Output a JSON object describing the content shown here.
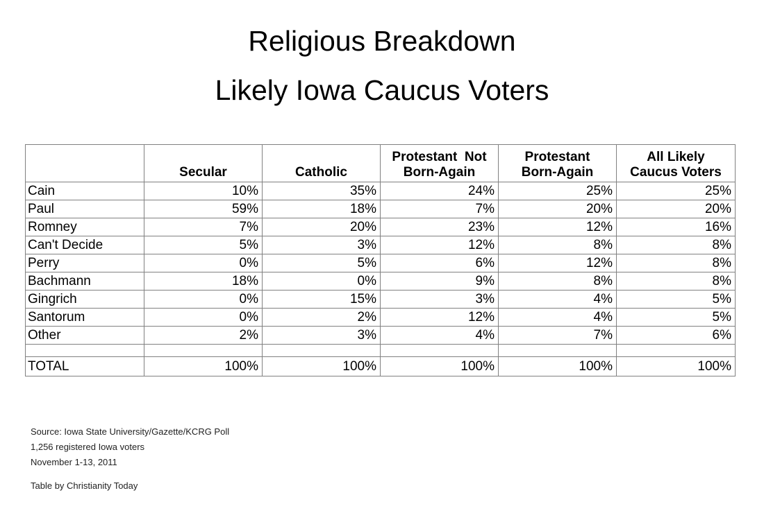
{
  "title": {
    "line1": "Religious Breakdown",
    "line2": "Likely Iowa Caucus Voters"
  },
  "chart_data": {
    "type": "table",
    "title": "Religious Breakdown - Likely Iowa Caucus Voters",
    "columns": [
      "",
      "Secular",
      "Catholic",
      "Protestant  Not\nBorn-Again",
      "Protestant\nBorn-Again",
      "All Likely\nCaucus Voters"
    ],
    "rows": [
      {
        "label": "Cain",
        "values": [
          "10%",
          "35%",
          "24%",
          "25%",
          "25%"
        ]
      },
      {
        "label": "Paul",
        "values": [
          "59%",
          "18%",
          "7%",
          "20%",
          "20%"
        ]
      },
      {
        "label": "Romney",
        "values": [
          "7%",
          "20%",
          "23%",
          "12%",
          "16%"
        ]
      },
      {
        "label": "Can't Decide",
        "values": [
          "5%",
          "3%",
          "12%",
          "8%",
          "8%"
        ]
      },
      {
        "label": "Perry",
        "values": [
          "0%",
          "5%",
          "6%",
          "12%",
          "8%"
        ]
      },
      {
        "label": "Bachmann",
        "values": [
          "18%",
          "0%",
          "9%",
          "8%",
          "8%"
        ]
      },
      {
        "label": "Gingrich",
        "values": [
          "0%",
          "15%",
          "3%",
          "4%",
          "5%"
        ]
      },
      {
        "label": "Santorum",
        "values": [
          "0%",
          "2%",
          "12%",
          "4%",
          "5%"
        ]
      },
      {
        "label": "Other",
        "values": [
          "2%",
          "3%",
          "4%",
          "7%",
          "6%"
        ]
      }
    ],
    "total_row": {
      "label": "TOTAL",
      "values": [
        "100%",
        "100%",
        "100%",
        "100%",
        "100%"
      ]
    },
    "border_color": "#808080"
  },
  "footer": {
    "source": "Source: Iowa State University/Gazette/KCRG Poll",
    "sample": "1,256 registered Iowa voters",
    "dates": "November 1-13, 2011",
    "credit": "Table by Christianity Today"
  }
}
